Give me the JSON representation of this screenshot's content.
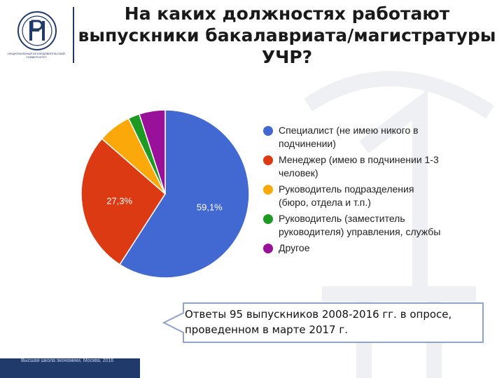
{
  "header": {
    "title_lines": [
      "На каких должностях работают",
      "выпускники бакалавриата/магистратуры",
      "УЧР?"
    ],
    "logo_subtitle": "НАЦИОНАЛЬНЫЙ ИССЛЕДОВАТЕЛЬСКИЙ УНИВЕРСИТЕТ"
  },
  "chart_data": {
    "type": "pie",
    "start_angle_deg": 90,
    "direction": "clockwise",
    "slices": [
      {
        "label": "Специалист (не имею никого в подчинении)",
        "legend_lines": [
          "Специалист (не имею никого в",
          "подчинении)"
        ],
        "value": 59.1,
        "data_label": "59,1%",
        "color": "#4169d1"
      },
      {
        "label": "Менеджер (имею в подчинении 1-3 человек)",
        "legend_lines": [
          "Менеджер (имею в подчинении 1-3",
          "человек)"
        ],
        "value": 27.3,
        "data_label": "27,3%",
        "color": "#dc3a12"
      },
      {
        "label": "Руководитель подразделения (бюро, отдела и т.п.)",
        "legend_lines": [
          "Руководитель подразделения",
          "(бюро, отдела и т.п.)"
        ],
        "value": 6.4,
        "data_label": "",
        "color": "#fba90a"
      },
      {
        "label": "Руководитель (заместитель руководителя) управления, службы",
        "legend_lines": [
          "Руководитель (заместитель",
          "руководителя) управления, службы"
        ],
        "value": 2.2,
        "data_label": "",
        "color": "#1e9a22"
      },
      {
        "label": "Другое",
        "legend_lines": [
          "Другое"
        ],
        "value": 5.0,
        "data_label": "",
        "color": "#991199"
      }
    ],
    "legend_position": "right"
  },
  "callout": {
    "lines": [
      "Ответы 95 выпускников 2008-2016 гг. в опросе,",
      "проведенном в марте 2017 г."
    ]
  },
  "footer": {
    "text": "Высшая школа экономики, Москва, 2016"
  }
}
